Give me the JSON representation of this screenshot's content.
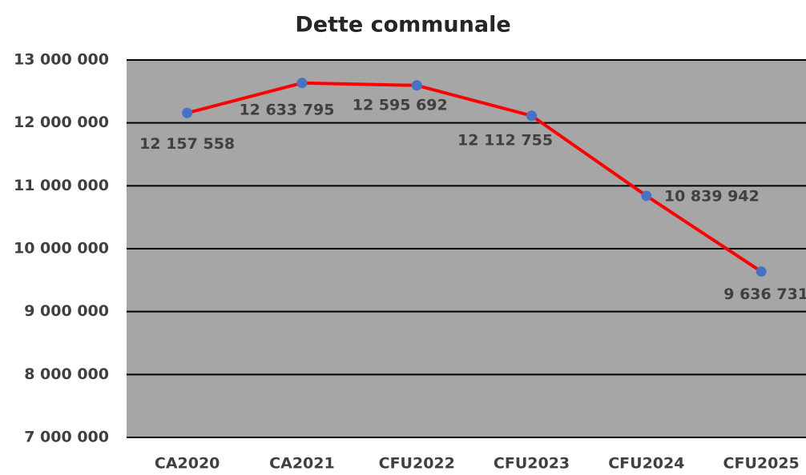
{
  "chart_data": {
    "type": "line",
    "title": "Dette communale",
    "categories": [
      "CA2020",
      "CA2021",
      "CFU2022",
      "CFU2023",
      "CFU2024",
      "CFU2025"
    ],
    "series": [
      {
        "name": "Dette communale",
        "color": "#ff0000",
        "marker_color": "#4472c4",
        "values": [
          12157558,
          12633795,
          12595692,
          12112755,
          10839942,
          9636731
        ],
        "value_labels": [
          "12 157 558",
          "12 633 795",
          "12 595 692",
          "12 112 755",
          "10 839 942",
          "9 636 731"
        ]
      }
    ],
    "ylim": [
      7000000,
      13000000
    ],
    "yticks": [
      {
        "value": 7000000,
        "label": "7 000 000"
      },
      {
        "value": 8000000,
        "label": "8 000 000"
      },
      {
        "value": 9000000,
        "label": "9 000 000"
      },
      {
        "value": 10000000,
        "label": "10 000 000"
      },
      {
        "value": 11000000,
        "label": "11 000 000"
      },
      {
        "value": 12000000,
        "label": "12 000 000"
      },
      {
        "value": 13000000,
        "label": "13 000 000"
      }
    ],
    "grid": true,
    "plot_background": "#a6a6a6"
  }
}
